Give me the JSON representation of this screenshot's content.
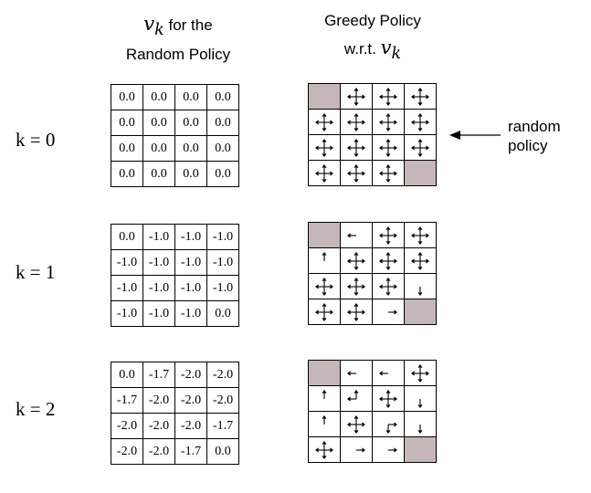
{
  "headers": {
    "left": {
      "symbol": "vk",
      "line1_suffix": "for the",
      "line2": "Random Policy"
    },
    "right": {
      "line1": "Greedy Policy",
      "line2_prefix": "w.r.t.",
      "symbol": "vk"
    }
  },
  "annotation": {
    "line1": "random",
    "line2": "policy",
    "arrow": "arrow-left-icon"
  },
  "rows": [
    {
      "k_label": "k = 0",
      "values": [
        [
          "0.0",
          "0.0",
          "0.0",
          "0.0"
        ],
        [
          "0.0",
          "0.0",
          "0.0",
          "0.0"
        ],
        [
          "0.0",
          "0.0",
          "0.0",
          "0.0"
        ],
        [
          "0.0",
          "0.0",
          "0.0",
          "0.0"
        ]
      ],
      "policy": [
        [
          "T",
          "NESW",
          "NESW",
          "NESW"
        ],
        [
          "NESW",
          "NESW",
          "NESW",
          "NESW"
        ],
        [
          "NESW",
          "NESW",
          "NESW",
          "NESW"
        ],
        [
          "NESW",
          "NESW",
          "NESW",
          "T"
        ]
      ]
    },
    {
      "k_label": "k = 1",
      "values": [
        [
          "0.0",
          "-1.0",
          "-1.0",
          "-1.0"
        ],
        [
          "-1.0",
          "-1.0",
          "-1.0",
          "-1.0"
        ],
        [
          "-1.0",
          "-1.0",
          "-1.0",
          "-1.0"
        ],
        [
          "-1.0",
          "-1.0",
          "-1.0",
          "0.0"
        ]
      ],
      "policy": [
        [
          "T",
          "W",
          "NESW",
          "NESW"
        ],
        [
          "N",
          "NESW",
          "NESW",
          "NESW"
        ],
        [
          "NESW",
          "NESW",
          "NESW",
          "S"
        ],
        [
          "NESW",
          "NESW",
          "E",
          "T"
        ]
      ]
    },
    {
      "k_label": "k = 2",
      "values": [
        [
          "0.0",
          "-1.7",
          "-2.0",
          "-2.0"
        ],
        [
          "-1.7",
          "-2.0",
          "-2.0",
          "-2.0"
        ],
        [
          "-2.0",
          "-2.0",
          "-2.0",
          "-1.7"
        ],
        [
          "-2.0",
          "-2.0",
          "-1.7",
          "0.0"
        ]
      ],
      "policy": [
        [
          "T",
          "W",
          "W",
          "NESW"
        ],
        [
          "N",
          "NW",
          "NESW",
          "S"
        ],
        [
          "N",
          "NESW",
          "ES",
          "S"
        ],
        [
          "NESW",
          "E",
          "E",
          "T"
        ]
      ]
    }
  ]
}
